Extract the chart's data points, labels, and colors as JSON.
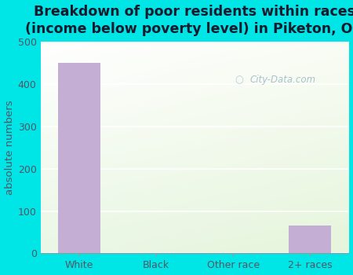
{
  "categories": [
    "White",
    "Black",
    "Other race",
    "2+ races"
  ],
  "values": [
    450,
    0,
    0,
    65
  ],
  "bar_color": "#c4aed4",
  "title": "Breakdown of poor residents within races\n(income below poverty level) in Piketon, OH",
  "ylabel": "absolute numbers",
  "ylim": [
    0,
    500
  ],
  "yticks": [
    0,
    100,
    200,
    300,
    400,
    500
  ],
  "bg_outer": "#00e5e5",
  "title_color": "#1a1a2e",
  "tick_color": "#555566",
  "title_fontsize": 12.5,
  "label_fontsize": 9.5,
  "tick_fontsize": 9,
  "watermark": "City-Data.com"
}
